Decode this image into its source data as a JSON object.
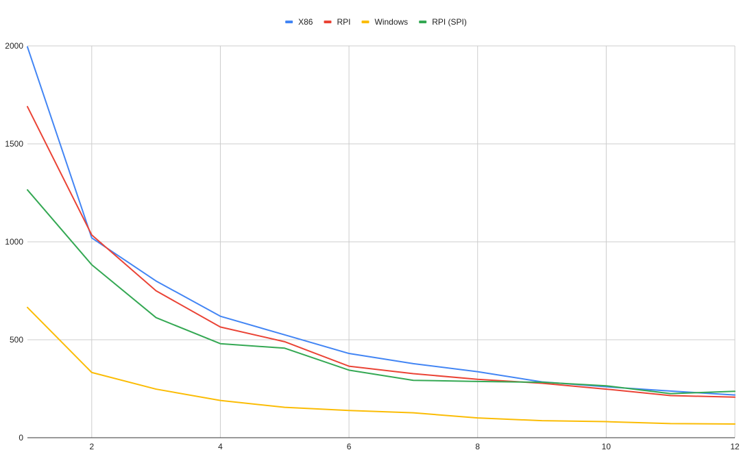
{
  "chart_data": {
    "type": "line",
    "title": "",
    "xlabel": "",
    "ylabel": "",
    "x": [
      1,
      2,
      3,
      4,
      5,
      6,
      7,
      8,
      9,
      10,
      11,
      12
    ],
    "xlim": [
      1,
      12
    ],
    "ylim": [
      0,
      2000
    ],
    "x_ticks": [
      "2",
      "4",
      "6",
      "8",
      "10",
      "12"
    ],
    "y_ticks": [
      "0",
      "500",
      "1000",
      "1500",
      "2000"
    ],
    "grid": true,
    "legend_position": "top",
    "series": [
      {
        "name": "X86",
        "color": "#4285f4",
        "values": [
          1995,
          1020,
          800,
          620,
          525,
          430,
          378,
          337,
          285,
          260,
          238,
          218
        ]
      },
      {
        "name": "RPI",
        "color": "#ea4335",
        "values": [
          1690,
          1035,
          750,
          565,
          490,
          365,
          327,
          298,
          278,
          248,
          215,
          207
        ]
      },
      {
        "name": "Windows",
        "color": "#fbbc04",
        "values": [
          665,
          333,
          248,
          190,
          155,
          139,
          127,
          101,
          87,
          82,
          72,
          70
        ]
      },
      {
        "name": "RPI (SPI)",
        "color": "#34a853",
        "values": [
          1265,
          883,
          613,
          480,
          457,
          345,
          293,
          287,
          283,
          265,
          225,
          237
        ]
      }
    ]
  }
}
